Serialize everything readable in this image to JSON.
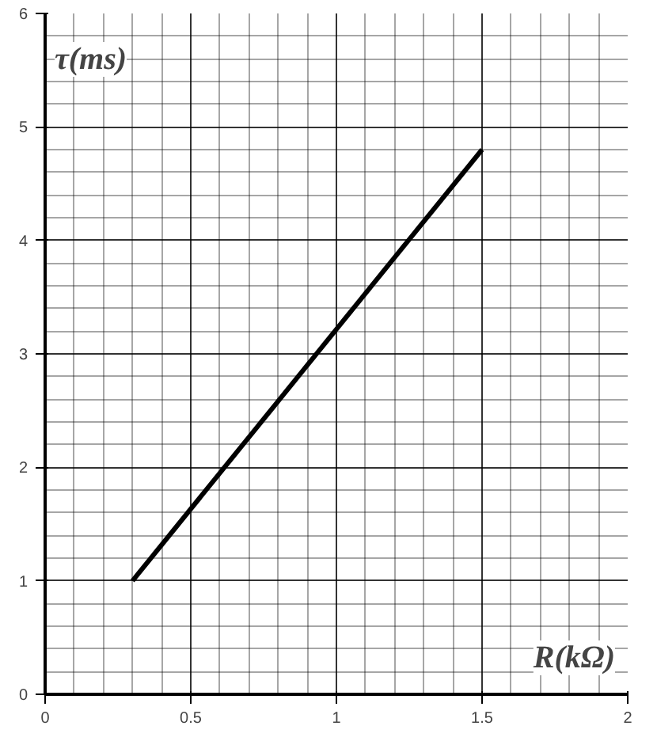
{
  "chart_data": {
    "type": "line",
    "xlabel": "R(kΩ)",
    "ylabel": "τ(ms)",
    "x": [
      0.3,
      1.5
    ],
    "series": [
      {
        "color": "#000000",
        "values": [
          1,
          4.8
        ]
      }
    ],
    "xlim": [
      0,
      2
    ],
    "ylim": [
      0,
      6
    ],
    "xticks": [
      0,
      0.5,
      1,
      1.5,
      2
    ],
    "yticks": [
      0,
      1,
      2,
      3,
      4,
      5,
      6
    ],
    "grid": true,
    "marker": "none",
    "line_style": "solid"
  }
}
